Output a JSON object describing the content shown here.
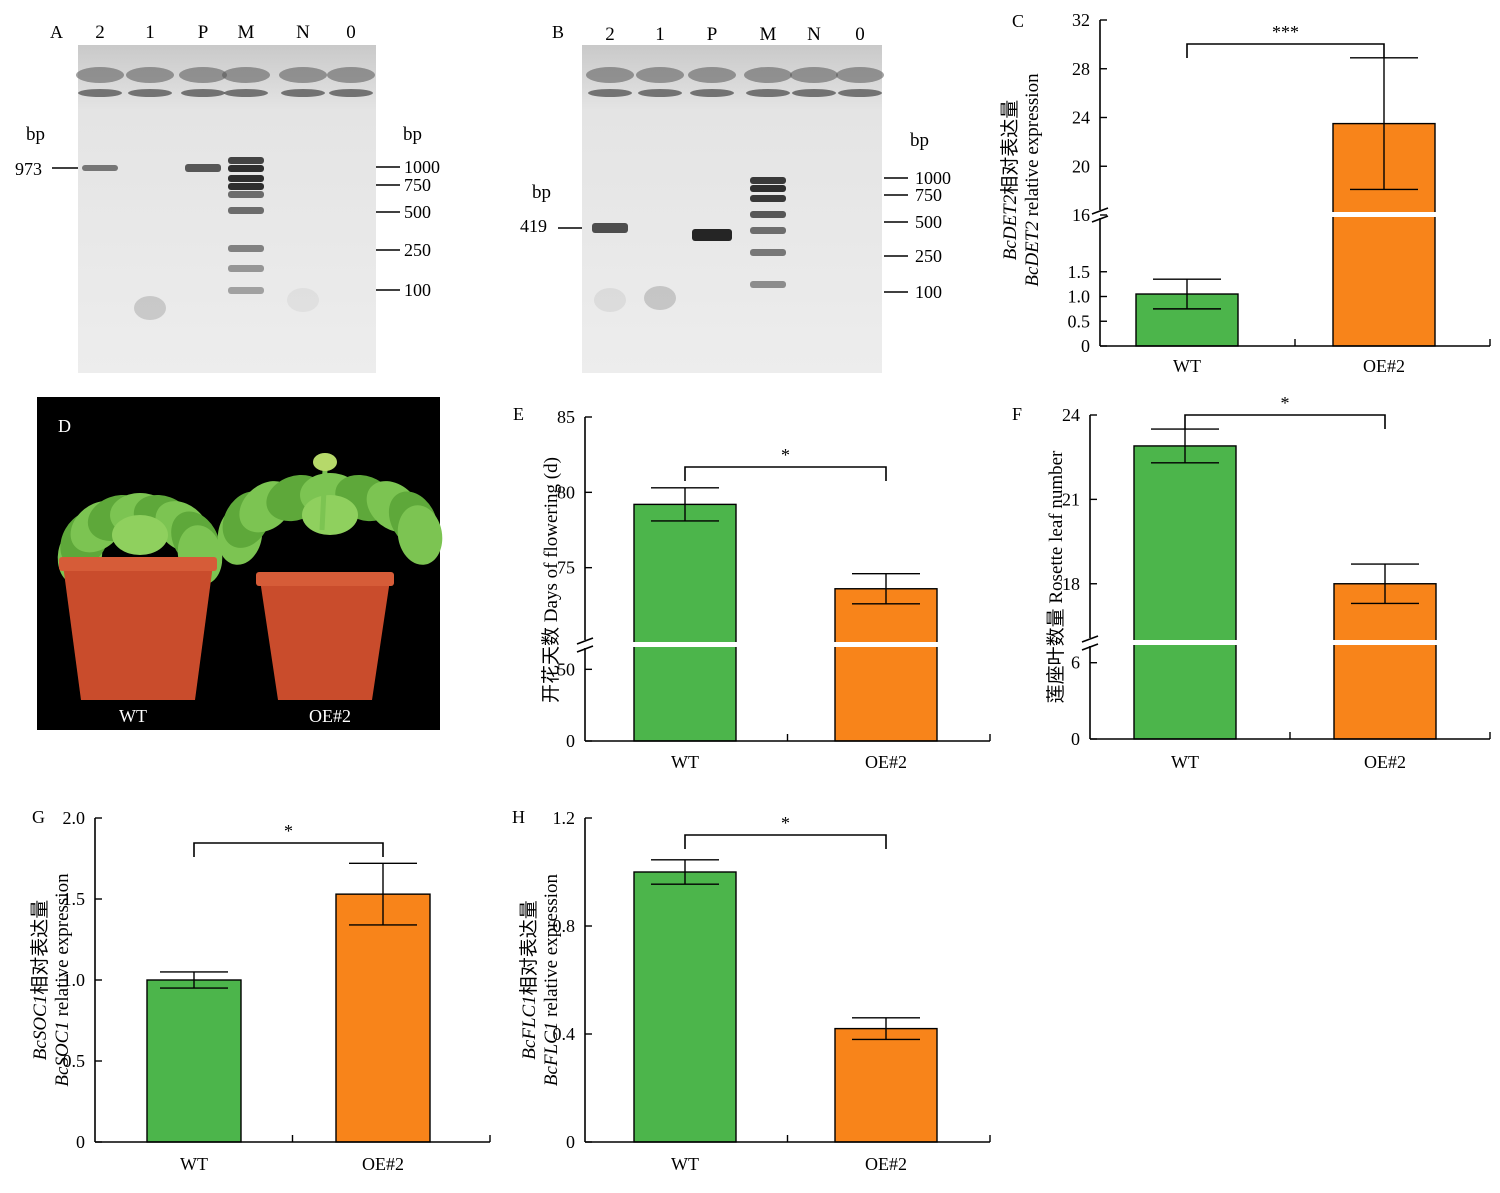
{
  "colors": {
    "wt": "#4cb54b",
    "oe": "#f8841a",
    "gel_bg": "#e9e9e9",
    "band": "#1a1a1a",
    "photo_bg": "#000000",
    "pot": "#c94c2c",
    "leaf": "#5ea83a"
  },
  "gels": [
    {
      "id": "A",
      "panel_label": "A",
      "lanes": [
        "2",
        "1",
        "P",
        "M",
        "N",
        "0"
      ],
      "bp_left": "bp",
      "bp_right": "bp",
      "target_label": "973",
      "ladder": [
        "1000",
        "750",
        "500",
        "250",
        "100"
      ]
    },
    {
      "id": "B",
      "panel_label": "B",
      "lanes": [
        "2",
        "1",
        "P",
        "M",
        "N",
        "0"
      ],
      "bp_left": "bp",
      "bp_right": "bp",
      "target_label": "419",
      "ladder": [
        "1000",
        "750",
        "500",
        "250",
        "100"
      ]
    }
  ],
  "photo": {
    "panel_label": "D",
    "labels": [
      "WT",
      "OE#2"
    ]
  },
  "chart_data": [
    {
      "id": "C",
      "panel_label": "C",
      "type": "bar",
      "categories": [
        "WT",
        "OE#2"
      ],
      "values": [
        1.05,
        23.5
      ],
      "errors": [
        0.3,
        5.4
      ],
      "significance": "***",
      "ylabel_cn_prefix": "BcDET2",
      "ylabel_cn": "相对表达量",
      "ylabel_en_prefix": "BcDET2",
      "ylabel_en": " relative expression",
      "axis_break": true,
      "lower_ticks": [
        0,
        0.5,
        1.0,
        1.5
      ],
      "lower_tick_labels": [
        "0",
        "0.5",
        "1.0",
        "1.5"
      ],
      "lower_range": [
        0,
        2.0
      ],
      "upper_ticks": [
        16,
        20,
        24,
        28,
        32
      ],
      "upper_tick_labels": [
        "16",
        "20",
        "24",
        "28",
        "32"
      ],
      "upper_range": [
        16,
        32
      ]
    },
    {
      "id": "E",
      "panel_label": "E",
      "type": "bar",
      "categories": [
        "WT",
        "OE#2"
      ],
      "values": [
        79.2,
        73.6
      ],
      "errors": [
        1.1,
        1.0
      ],
      "significance": "*",
      "ylabel": "开花天数 Days of flowering (d)",
      "axis_break": true,
      "lower_ticks": [
        0,
        50
      ],
      "lower_tick_labels": [
        "0",
        "50"
      ],
      "lower_range": [
        0,
        60
      ],
      "upper_ticks": [
        75,
        80,
        85
      ],
      "upper_tick_labels": [
        "75",
        "80",
        "85"
      ],
      "upper_range": [
        70,
        85
      ]
    },
    {
      "id": "F",
      "panel_label": "F",
      "type": "bar",
      "categories": [
        "WT",
        "OE#2"
      ],
      "values": [
        22.9,
        18.0
      ],
      "errors": [
        0.6,
        0.7
      ],
      "significance": "*",
      "ylabel": "莲座叶数量 Rosette leaf number",
      "axis_break": true,
      "lower_ticks": [
        0,
        6
      ],
      "lower_tick_labels": [
        "0",
        "6"
      ],
      "lower_range": [
        0,
        7
      ],
      "upper_ticks": [
        18,
        21,
        24
      ],
      "upper_tick_labels": [
        "18",
        "21",
        "24"
      ],
      "upper_range": [
        16,
        24
      ]
    },
    {
      "id": "G",
      "panel_label": "G",
      "type": "bar",
      "categories": [
        "WT",
        "OE#2"
      ],
      "values": [
        1.0,
        1.53
      ],
      "errors": [
        0.05,
        0.19
      ],
      "significance": "*",
      "ylabel_cn_prefix": "BcSOC1",
      "ylabel_cn": "相对表达量",
      "ylabel_en_prefix": "BcSOC1",
      "ylabel_en": " relative expression",
      "axis_break": false,
      "ticks": [
        0,
        0.5,
        1.0,
        1.5,
        2.0
      ],
      "tick_labels": [
        "0",
        "0.5",
        "1.0",
        "1.5",
        "2.0"
      ],
      "ylim": [
        0,
        2.0
      ]
    },
    {
      "id": "H",
      "panel_label": "H",
      "type": "bar",
      "categories": [
        "WT",
        "OE#2"
      ],
      "values": [
        1.0,
        0.42
      ],
      "errors": [
        0.045,
        0.04
      ],
      "significance": "*",
      "ylabel_cn_prefix": "BcFLC1",
      "ylabel_cn": "相对表达量",
      "ylabel_en_prefix": "BcFLC1",
      "ylabel_en": " relative expression",
      "axis_break": false,
      "ticks": [
        0,
        0.4,
        0.8,
        1.2
      ],
      "tick_labels": [
        "0",
        "0.4",
        "0.8",
        "1.2"
      ],
      "ylim": [
        0,
        1.2
      ]
    }
  ]
}
